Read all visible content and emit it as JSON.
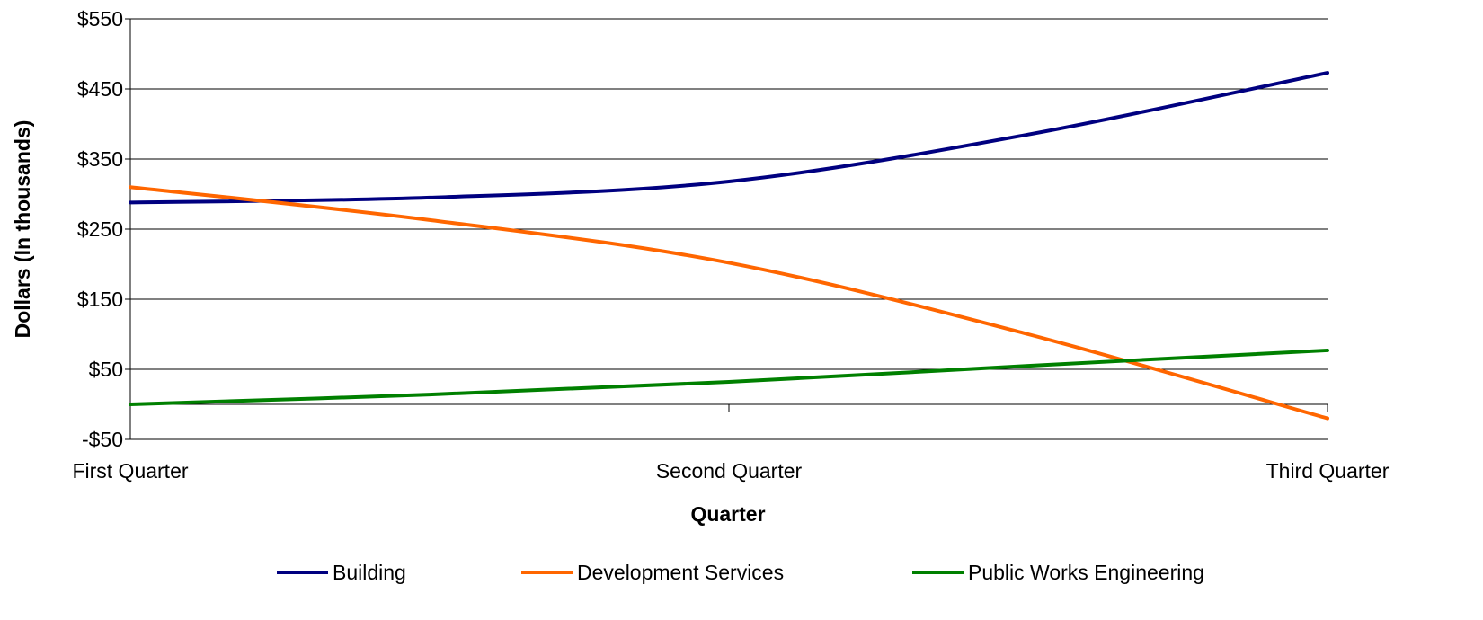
{
  "chart_data": {
    "type": "line",
    "title": "",
    "xlabel": "Quarter",
    "ylabel": "Dollars (In thousands)",
    "categories": [
      "First Quarter",
      "Second Quarter",
      "Third Quarter"
    ],
    "ylim": [
      -50,
      550
    ],
    "yticks": [
      -50,
      50,
      150,
      250,
      350,
      450,
      550
    ],
    "ytick_labels": [
      "-$50",
      "$50",
      "$150",
      "$250",
      "$350",
      "$450",
      "$550"
    ],
    "grid": true,
    "legend_position": "bottom",
    "series": [
      {
        "name": "Building",
        "color": "#000080",
        "x": [
          0,
          0.5,
          1,
          1.5,
          2
        ],
        "values": [
          288,
          295,
          318,
          385,
          473
        ]
      },
      {
        "name": "Development Services",
        "color": "#FF6600",
        "x": [
          0,
          0.5,
          1,
          1.5,
          2
        ],
        "values": [
          310,
          263,
          202,
          100,
          -20
        ]
      },
      {
        "name": "Public Works Engineering",
        "color": "#008000",
        "x": [
          0,
          0.5,
          1,
          1.5,
          2
        ],
        "values": [
          0,
          14,
          32,
          55,
          77
        ]
      }
    ]
  }
}
